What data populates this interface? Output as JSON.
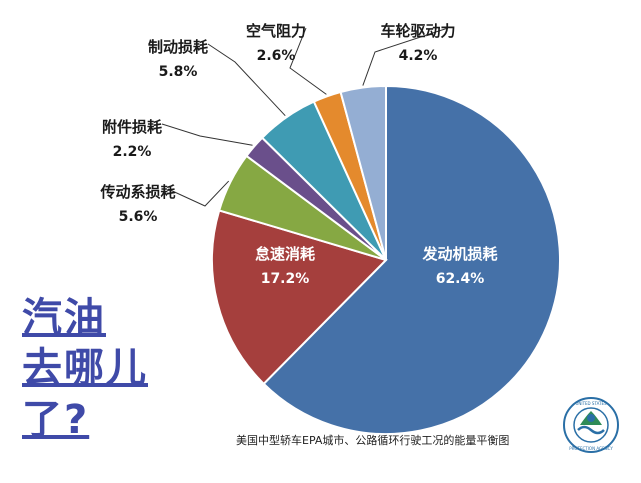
{
  "chart_data": {
    "type": "pie",
    "title": "",
    "slices": [
      {
        "label": "发动机损耗",
        "value": 62.4,
        "value_text": "62.4%",
        "color": "#4571a8"
      },
      {
        "label": "怠速消耗",
        "value": 17.2,
        "value_text": "17.2%",
        "color": "#a53f3d"
      },
      {
        "label": "传动系损耗",
        "value": 5.6,
        "value_text": "5.6%",
        "color": "#86a843"
      },
      {
        "label": "附件损耗",
        "value": 2.2,
        "value_text": "2.2%",
        "color": "#6a4f8b"
      },
      {
        "label": "制动损耗",
        "value": 5.8,
        "value_text": "5.8%",
        "color": "#3f9bb3"
      },
      {
        "label": "空气阻力",
        "value": 2.6,
        "value_text": "2.6%",
        "color": "#e48a2d"
      },
      {
        "label": "车轮驱动力",
        "value": 4.2,
        "value_text": "4.2%",
        "color": "#94aed3"
      }
    ]
  },
  "side_title_lines": [
    "汽油",
    "去哪儿",
    "了?"
  ],
  "caption": "美国中型轿车EPA城市、公路循环行驶工况的能量平衡图",
  "logo": {
    "name": "epa-seal-icon",
    "text": "UNITED STATES ENVIRONMENTAL PROTECTION AGENCY"
  }
}
